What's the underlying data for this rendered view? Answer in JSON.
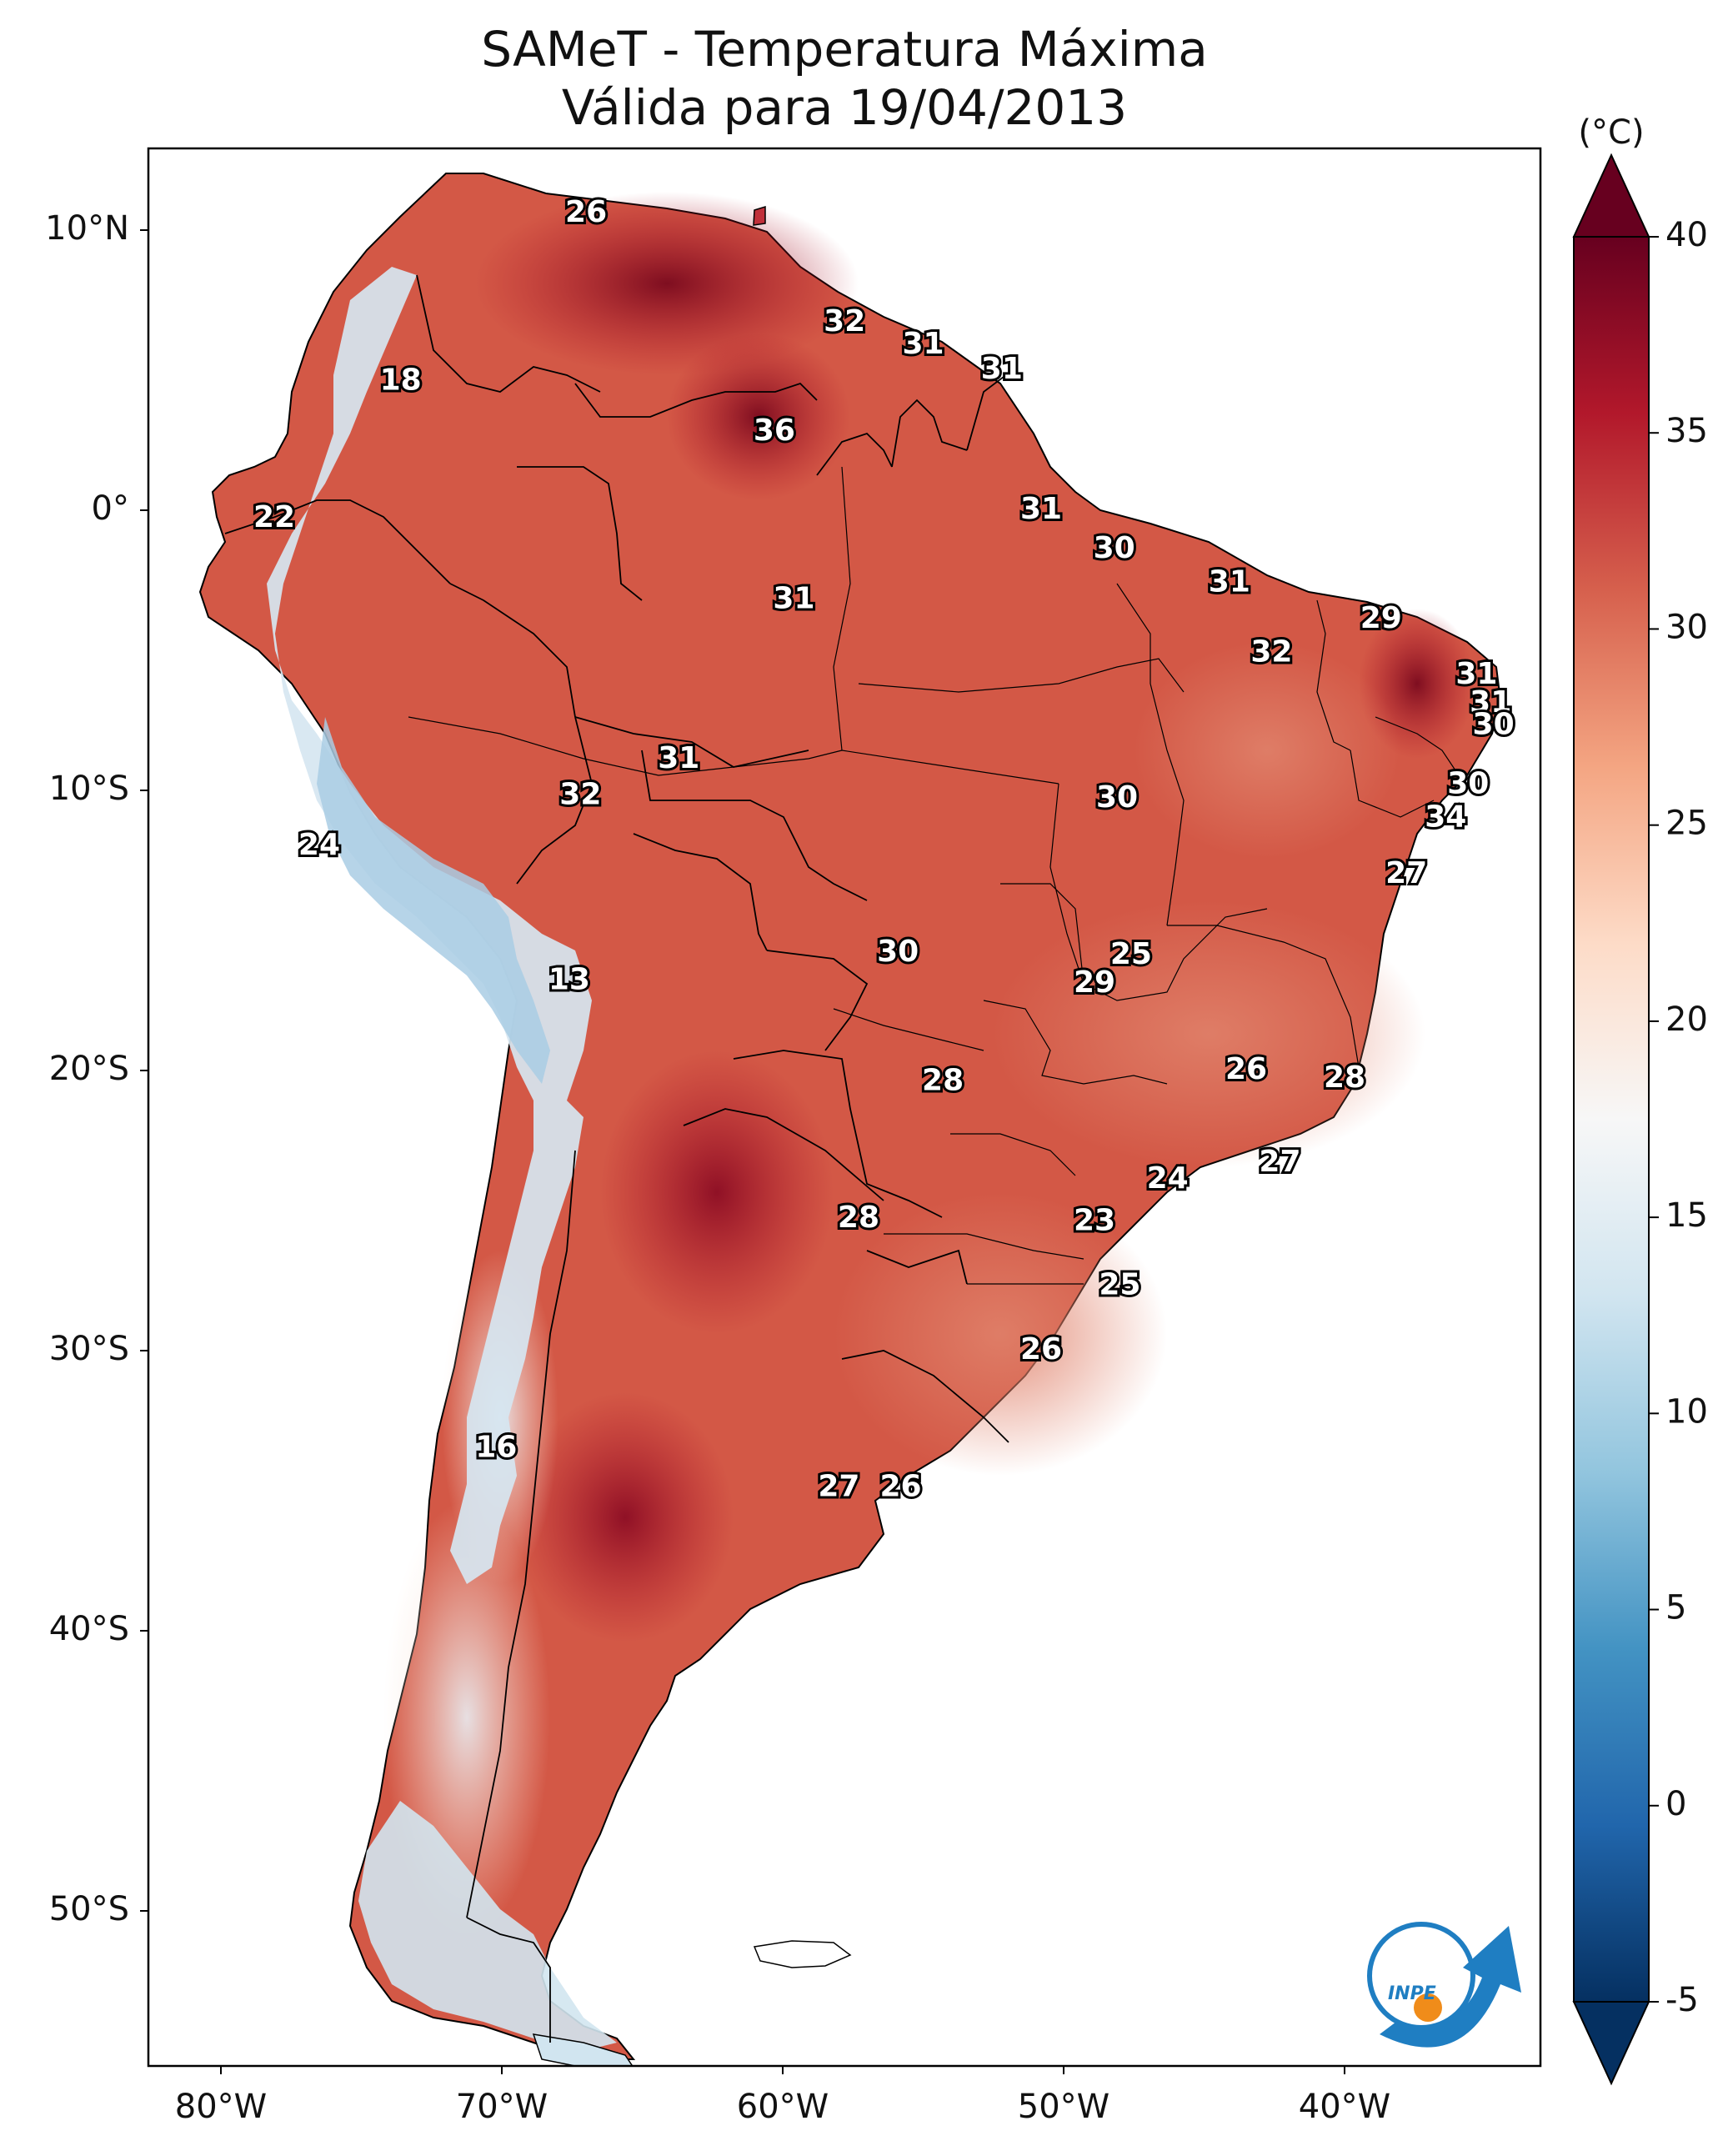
{
  "title": {
    "line1": "SAMeT - Temperatura Máxima",
    "line2": "Válida para 19/04/2013"
  },
  "colorbar": {
    "unit": "(°C)",
    "range": [
      -5,
      40
    ],
    "ticks": [
      "40",
      "35",
      "30",
      "25",
      "20",
      "15",
      "10",
      "5",
      "0",
      "-5"
    ],
    "colors": [
      "#053061",
      "#2166ac",
      "#4393c3",
      "#92c5de",
      "#d1e5f0",
      "#f7f7f7",
      "#fddbc7",
      "#f4a582",
      "#d6604d",
      "#b2182b",
      "#67001f"
    ]
  },
  "axes": {
    "lat_labels": [
      "10°N",
      "0°",
      "10°S",
      "20°S",
      "30°S",
      "40°S",
      "50°S"
    ],
    "lon_labels": [
      "80°W",
      "70°W",
      "60°W",
      "50°W",
      "40°W"
    ]
  },
  "point_labels": [
    {
      "value": "26",
      "lon": -67.0,
      "lat": 10.6
    },
    {
      "value": "32",
      "lon": -57.8,
      "lat": 6.7
    },
    {
      "value": "31",
      "lon": -55.0,
      "lat": 5.9
    },
    {
      "value": "31",
      "lon": -52.2,
      "lat": 5.0
    },
    {
      "value": "18",
      "lon": -73.6,
      "lat": 4.6
    },
    {
      "value": "36",
      "lon": -60.3,
      "lat": 2.8
    },
    {
      "value": "22",
      "lon": -78.1,
      "lat": -0.3
    },
    {
      "value": "31",
      "lon": -50.8,
      "lat": 0.0
    },
    {
      "value": "30",
      "lon": -48.2,
      "lat": -1.4
    },
    {
      "value": "31",
      "lon": -44.1,
      "lat": -2.6
    },
    {
      "value": "31",
      "lon": -59.6,
      "lat": -3.2
    },
    {
      "value": "29",
      "lon": -38.7,
      "lat": -3.9
    },
    {
      "value": "32",
      "lon": -42.6,
      "lat": -5.1
    },
    {
      "value": "31",
      "lon": -35.3,
      "lat": -5.9
    },
    {
      "value": "31",
      "lon": -34.8,
      "lat": -6.9
    },
    {
      "value": "30",
      "lon": -34.7,
      "lat": -7.7
    },
    {
      "value": "31",
      "lon": -63.7,
      "lat": -8.9
    },
    {
      "value": "30",
      "lon": -35.6,
      "lat": -9.8
    },
    {
      "value": "32",
      "lon": -67.2,
      "lat": -10.2
    },
    {
      "value": "30",
      "lon": -48.1,
      "lat": -10.3
    },
    {
      "value": "34",
      "lon": -36.4,
      "lat": -11.0
    },
    {
      "value": "24",
      "lon": -76.5,
      "lat": -12.0
    },
    {
      "value": "27",
      "lon": -37.8,
      "lat": -13.0
    },
    {
      "value": "25",
      "lon": -47.6,
      "lat": -15.9
    },
    {
      "value": "30",
      "lon": -55.9,
      "lat": -15.8
    },
    {
      "value": "29",
      "lon": -48.9,
      "lat": -16.9
    },
    {
      "value": "13",
      "lon": -67.6,
      "lat": -16.8
    },
    {
      "value": "26",
      "lon": -43.5,
      "lat": -20.0
    },
    {
      "value": "28",
      "lon": -40.0,
      "lat": -20.3
    },
    {
      "value": "28",
      "lon": -54.3,
      "lat": -20.4
    },
    {
      "value": "27",
      "lon": -42.3,
      "lat": -23.3
    },
    {
      "value": "24",
      "lon": -46.3,
      "lat": -23.9
    },
    {
      "value": "28",
      "lon": -57.3,
      "lat": -25.3
    },
    {
      "value": "23",
      "lon": -48.9,
      "lat": -25.4
    },
    {
      "value": "25",
      "lon": -48.0,
      "lat": -27.7
    },
    {
      "value": "26",
      "lon": -50.8,
      "lat": -30.0
    },
    {
      "value": "16",
      "lon": -70.2,
      "lat": -33.5
    },
    {
      "value": "27",
      "lon": -58.0,
      "lat": -34.9
    },
    {
      "value": "26",
      "lon": -55.8,
      "lat": -34.9
    }
  ],
  "logo": {
    "text": "INPE"
  }
}
